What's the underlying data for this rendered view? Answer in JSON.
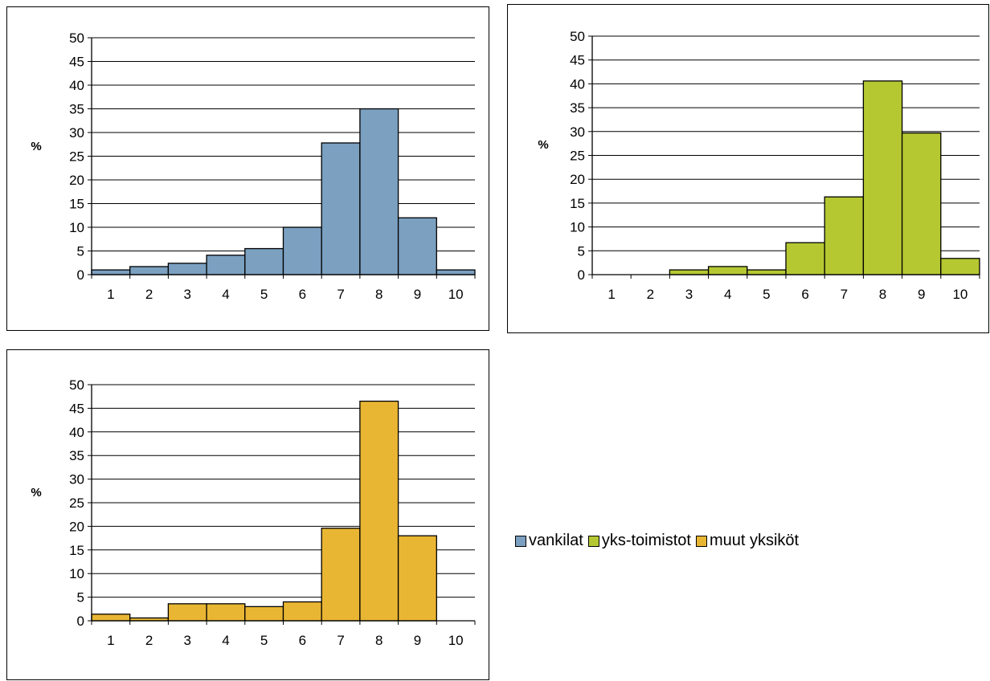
{
  "chart_data": [
    {
      "type": "bar",
      "ylabel": "%",
      "ylim": [
        0,
        50
      ],
      "yticks": [
        "0",
        "5",
        "10",
        "15",
        "20",
        "25",
        "30",
        "35",
        "40",
        "45",
        "50"
      ],
      "grid": true,
      "categories": [
        "1",
        "2",
        "3",
        "4",
        "5",
        "6",
        "7",
        "8",
        "9",
        "10"
      ],
      "series": [
        {
          "name": "vankilat",
          "color": "#7BA0C0",
          "values": [
            1.0,
            1.7,
            2.4,
            4.1,
            5.5,
            10.0,
            27.8,
            35.0,
            12.0,
            1.0
          ]
        }
      ]
    },
    {
      "type": "bar",
      "ylabel": "%",
      "ylim": [
        0,
        50
      ],
      "yticks": [
        "0",
        "5",
        "10",
        "15",
        "20",
        "25",
        "30",
        "35",
        "40",
        "45",
        "50"
      ],
      "grid": true,
      "categories": [
        "1",
        "2",
        "3",
        "4",
        "5",
        "6",
        "7",
        "8",
        "9",
        "10"
      ],
      "series": [
        {
          "name": "yks-toimistot",
          "color": "#B5C832",
          "values": [
            0,
            0,
            1.0,
            1.7,
            1.0,
            6.7,
            16.3,
            40.6,
            29.7,
            3.4
          ]
        }
      ]
    },
    {
      "type": "bar",
      "ylabel": "%",
      "ylim": [
        0,
        50
      ],
      "yticks": [
        "0",
        "5",
        "10",
        "15",
        "20",
        "25",
        "30",
        "35",
        "40",
        "45",
        "50"
      ],
      "grid": true,
      "categories": [
        "1",
        "2",
        "3",
        "4",
        "5",
        "6",
        "7",
        "8",
        "9",
        "10"
      ],
      "series": [
        {
          "name": "muut yksiköt",
          "color": "#E9B634",
          "values": [
            1.4,
            0.6,
            3.6,
            3.6,
            3.0,
            4.0,
            19.6,
            46.5,
            18.0,
            0
          ]
        }
      ]
    }
  ],
  "legend": {
    "placement": "right-middle",
    "items": [
      {
        "label": "vankilat",
        "color": "#7BA0C0"
      },
      {
        "label": "yks-toimistot",
        "color": "#B5C832"
      },
      {
        "label": "muut yksiköt",
        "color": "#E9B634"
      }
    ]
  }
}
